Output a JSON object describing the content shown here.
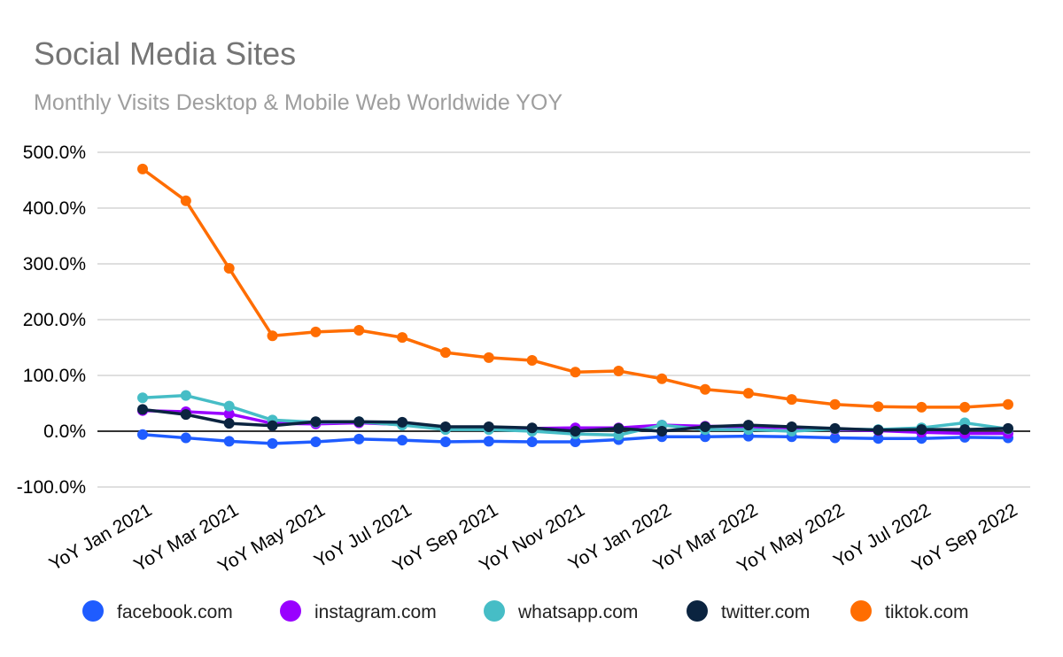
{
  "chart_data": {
    "type": "line",
    "title": "Social Media Sites",
    "subtitle": "Monthly Visits Desktop & Mobile Web Worldwide YOY",
    "xlabel": "",
    "ylabel": "",
    "ylim": [
      -100,
      500
    ],
    "y_ticks": [
      "-100.0%",
      "0.0%",
      "100.0%",
      "200.0%",
      "300.0%",
      "400.0%",
      "500.0%"
    ],
    "y_tick_values": [
      -100,
      0,
      100,
      200,
      300,
      400,
      500
    ],
    "x": [
      "YoY Jan 2021",
      "YoY Feb 2021",
      "YoY Mar 2021",
      "YoY Apr 2021",
      "YoY May 2021",
      "YoY Jun 2021",
      "YoY Jul 2021",
      "YoY Aug 2021",
      "YoY Sep 2021",
      "YoY Oct 2021",
      "YoY Nov 2021",
      "YoY Dec 2021",
      "YoY Jan 2022",
      "YoY Feb 2022",
      "YoY Mar 2022",
      "YoY Apr 2022",
      "YoY May 2022",
      "YoY Jun 2022",
      "YoY Jul 2022",
      "YoY Aug 2022",
      "YoY Sep 2022"
    ],
    "x_tick_labels": [
      "YoY Jan 2021",
      "YoY Mar 2021",
      "YoY May 2021",
      "YoY Jul 2021",
      "YoY Sep 2021",
      "YoY Nov 2021",
      "YoY Jan 2022",
      "YoY Mar 2022",
      "YoY May 2022",
      "YoY Jul 2022",
      "YoY Sep 2022"
    ],
    "grid": true,
    "legend_position": "bottom",
    "series": [
      {
        "name": "facebook.com",
        "color": "#1f5cff",
        "values": [
          -6,
          -12,
          -18,
          -22,
          -19,
          -14,
          -16,
          -19,
          -18,
          -19,
          -19,
          -15,
          -10,
          -10,
          -9,
          -10,
          -12,
          -13,
          -13,
          -11,
          -12
        ]
      },
      {
        "name": "instagram.com",
        "color": "#9900ff",
        "values": [
          37,
          35,
          31,
          14,
          13,
          15,
          12,
          6,
          7,
          5,
          6,
          6,
          11,
          9,
          8,
          6,
          3,
          1,
          -2,
          -4,
          -4
        ]
      },
      {
        "name": "whatsapp.com",
        "color": "#46bdc6",
        "values": [
          60,
          64,
          45,
          20,
          16,
          17,
          11,
          3,
          3,
          0,
          -5,
          -7,
          11,
          3,
          3,
          0,
          4,
          3,
          6,
          15,
          4
        ]
      },
      {
        "name": "twitter.com",
        "color": "#0b2440",
        "values": [
          39,
          30,
          14,
          10,
          17,
          17,
          16,
          8,
          8,
          6,
          0,
          5,
          0,
          8,
          11,
          8,
          5,
          2,
          3,
          3,
          5
        ]
      },
      {
        "name": "tiktok.com",
        "color": "#ff6d01",
        "values": [
          470,
          413,
          292,
          171,
          178,
          181,
          168,
          141,
          132,
          127,
          106,
          108,
          94,
          75,
          68,
          57,
          48,
          44,
          43,
          43,
          48
        ]
      }
    ]
  }
}
